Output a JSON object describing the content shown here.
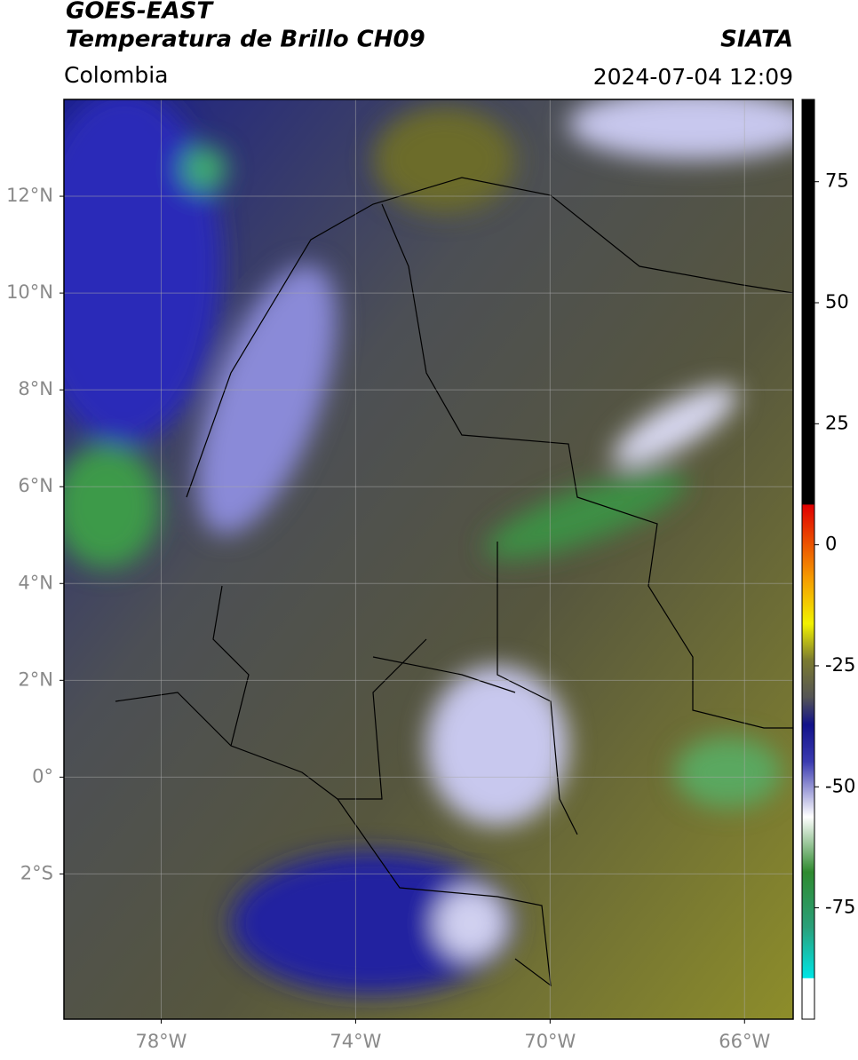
{
  "header": {
    "title": "GOES-EAST",
    "subtitle": "Temperatura de Brillo CH09",
    "region": "Colombia",
    "source": "SIATA",
    "datetime": "2024-07-04 12:09"
  },
  "map": {
    "latlim": [
      -5,
      14
    ],
    "lonlim": [
      -80,
      -65
    ],
    "lat_ticks": [
      {
        "value": 12,
        "label": "12°N"
      },
      {
        "value": 10,
        "label": "10°N"
      },
      {
        "value": 8,
        "label": "8°N"
      },
      {
        "value": 6,
        "label": "6°N"
      },
      {
        "value": 4,
        "label": "4°N"
      },
      {
        "value": 2,
        "label": "2°N"
      },
      {
        "value": 0,
        "label": "0°"
      },
      {
        "value": -2,
        "label": "2°S"
      }
    ],
    "lon_ticks": [
      {
        "value": -78,
        "label": "78°W"
      },
      {
        "value": -74,
        "label": "74°W"
      },
      {
        "value": -70,
        "label": "70°W"
      },
      {
        "value": -66,
        "label": "66°W"
      }
    ],
    "grid": true
  },
  "colorbar": {
    "lim": [
      -98,
      92
    ],
    "ticks": [
      75,
      50,
      25,
      0,
      -25,
      -50,
      -75
    ]
  }
}
